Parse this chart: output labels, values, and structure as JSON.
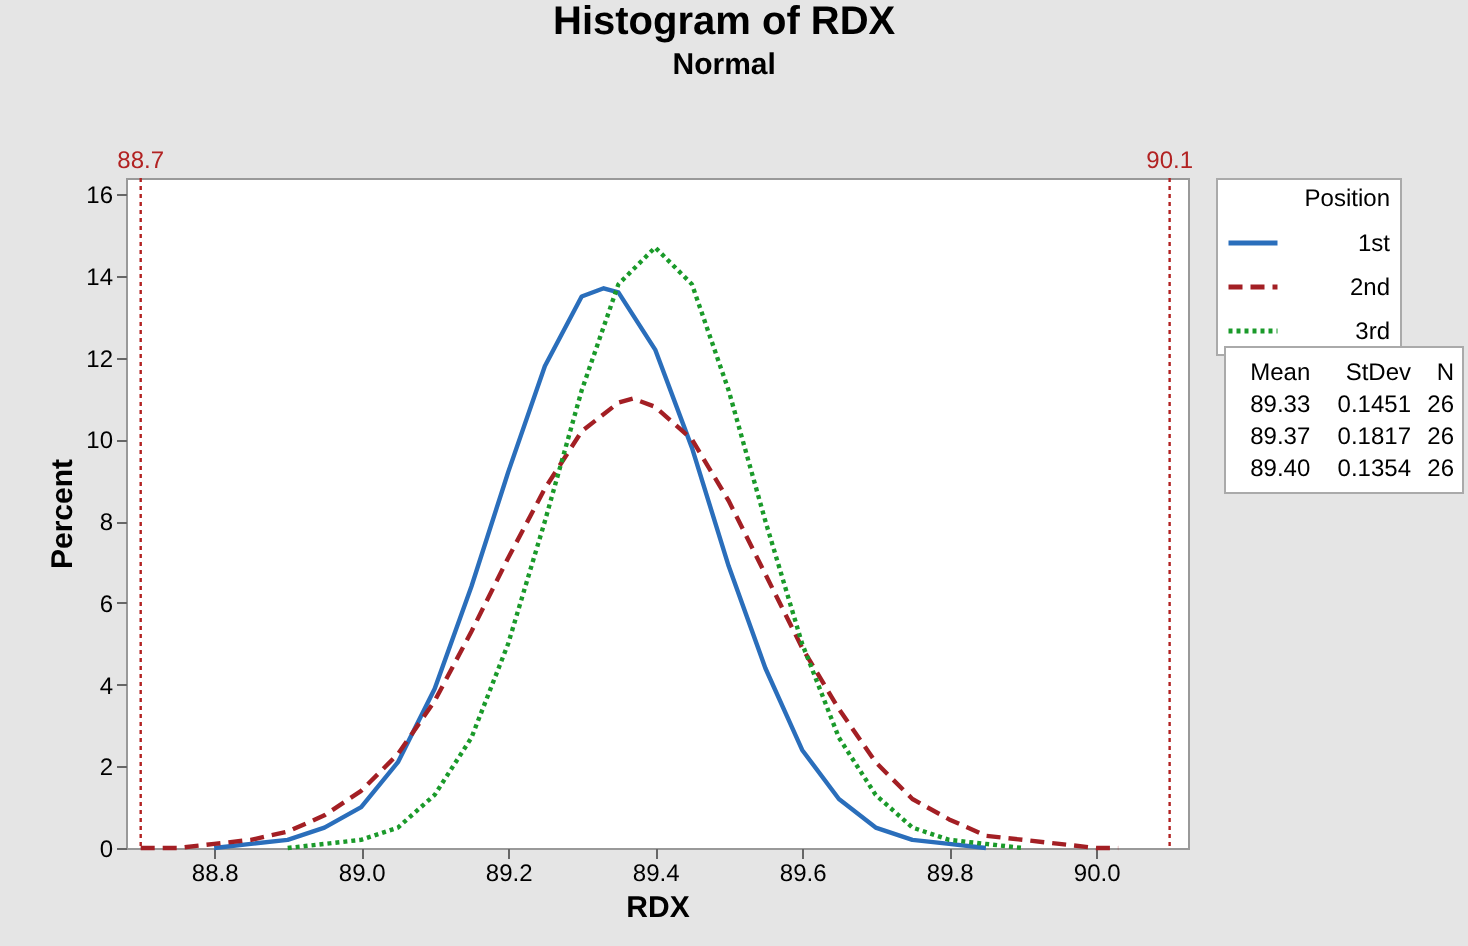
{
  "chart_data": {
    "type": "line",
    "title": "Histogram of RDX",
    "subtitle": "Normal",
    "xlabel": "RDX",
    "ylabel": "Percent",
    "legend_title": "Position",
    "legend": "right",
    "xlim": [
      88.68,
      90.125
    ],
    "ylim": [
      0,
      16.4
    ],
    "xticks": [
      {
        "value": 88.8,
        "label": "88.8"
      },
      {
        "value": 89,
        "label": "89.0"
      },
      {
        "value": 89.2,
        "label": "89.2"
      },
      {
        "value": 89.4,
        "label": "89.4"
      },
      {
        "value": 89.6,
        "label": "89.6"
      },
      {
        "value": 89.8,
        "label": "89.8"
      },
      {
        "value": 90,
        "label": "90.0"
      }
    ],
    "yticks": [
      0,
      2,
      4,
      6,
      8,
      10,
      12,
      14,
      16
    ],
    "series": [
      {
        "name": "1st",
        "color": "#2a6ebb",
        "line_style": "solid",
        "x": [
          88.8,
          88.85,
          88.9,
          88.95,
          89.0,
          89.05,
          89.1,
          89.15,
          89.2,
          89.25,
          89.3,
          89.33,
          89.35,
          89.4,
          89.45,
          89.5,
          89.55,
          89.6,
          89.65,
          89.7,
          89.75,
          89.8,
          89.85
        ],
        "values": [
          0.0,
          0.1,
          0.2,
          0.5,
          1.0,
          2.1,
          3.9,
          6.4,
          9.2,
          11.8,
          13.5,
          13.7,
          13.6,
          12.2,
          9.8,
          6.9,
          4.4,
          2.4,
          1.2,
          0.5,
          0.2,
          0.1,
          0.0
        ]
      },
      {
        "name": "2nd",
        "color": "#a31f24",
        "line_style": "dashed",
        "x": [
          88.7,
          88.75,
          88.8,
          88.85,
          88.9,
          88.95,
          89.0,
          89.05,
          89.1,
          89.15,
          89.2,
          89.25,
          89.3,
          89.35,
          89.37,
          89.4,
          89.45,
          89.5,
          89.55,
          89.6,
          89.65,
          89.7,
          89.75,
          89.8,
          89.85,
          89.9,
          89.95,
          90.0,
          90.03
        ],
        "values": [
          0.0,
          0.0,
          0.1,
          0.2,
          0.4,
          0.8,
          1.4,
          2.3,
          3.6,
          5.3,
          7.1,
          8.8,
          10.2,
          10.9,
          11.0,
          10.8,
          10.0,
          8.5,
          6.7,
          4.9,
          3.4,
          2.1,
          1.2,
          0.7,
          0.3,
          0.2,
          0.1,
          0.0,
          0.0
        ]
      },
      {
        "name": "3rd",
        "color": "#1a9a2a",
        "line_style": "dotted",
        "x": [
          88.9,
          88.95,
          89.0,
          89.05,
          89.1,
          89.15,
          89.2,
          89.25,
          89.3,
          89.35,
          89.4,
          89.45,
          89.5,
          89.55,
          89.6,
          89.65,
          89.7,
          89.75,
          89.8,
          89.85,
          89.9
        ],
        "values": [
          0.0,
          0.1,
          0.2,
          0.5,
          1.3,
          2.7,
          5.0,
          8.0,
          11.2,
          13.8,
          14.7,
          13.8,
          11.2,
          8.0,
          5.0,
          2.7,
          1.3,
          0.5,
          0.2,
          0.1,
          0.0
        ]
      }
    ],
    "ref_lines": [
      {
        "axis": "x",
        "value": 88.7,
        "label": "88.7",
        "color": "#b22222",
        "line_style": "dotted"
      },
      {
        "axis": "x",
        "value": 90.1,
        "label": "90.1",
        "color": "#b22222",
        "line_style": "dotted"
      }
    ],
    "annotations": [
      "Mean StDev N",
      "89.33 0.1451 26",
      "89.37 0.1817 26",
      "89.40 0.1354 26"
    ]
  }
}
